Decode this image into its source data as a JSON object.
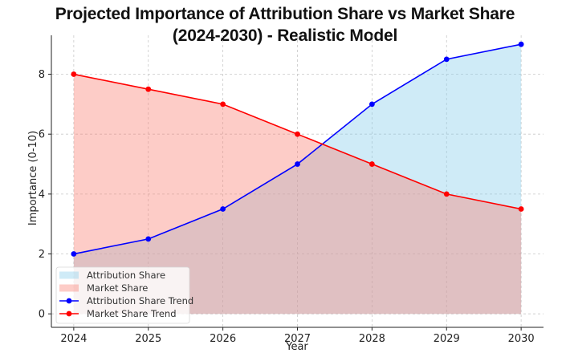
{
  "chart_data": {
    "type": "area",
    "title": "Projected Importance of Attribution Share vs Market Share",
    "subtitle": "(2024-2030) - Realistic Model",
    "xlabel": "Year",
    "ylabel": "Importance (0-10)",
    "x": [
      2024,
      2025,
      2026,
      2027,
      2028,
      2029,
      2030
    ],
    "x_ticks": [
      "2024",
      "2025",
      "2026",
      "2027",
      "2028",
      "2029",
      "2030"
    ],
    "y_ticks": [
      "0",
      "2",
      "4",
      "6",
      "8"
    ],
    "y_tick_values": [
      0,
      2,
      4,
      6,
      8
    ],
    "ylim": [
      -0.45,
      9.3
    ],
    "xlim": [
      2023.7,
      2030.3
    ],
    "grid": true,
    "legend_position": "bottom-left",
    "series": [
      {
        "name": "Attribution Share",
        "kind": "area",
        "values": [
          2,
          2.5,
          3.5,
          5,
          7,
          8.5,
          9
        ],
        "color": "#87CEEB",
        "opacity": 0.4
      },
      {
        "name": "Market Share",
        "kind": "area",
        "values": [
          8,
          7.5,
          7,
          6,
          5,
          4,
          3.5
        ],
        "color": "#FA8072",
        "opacity": 0.4
      },
      {
        "name": "Attribution Share Trend",
        "kind": "line",
        "values": [
          2,
          2.5,
          3.5,
          5,
          7,
          8.5,
          9
        ],
        "color": "#0000FF",
        "marker": "o"
      },
      {
        "name": "Market Share Trend",
        "kind": "line",
        "values": [
          8,
          7.5,
          7,
          6,
          5,
          4,
          3.5
        ],
        "color": "#FF0000",
        "marker": "o"
      }
    ]
  }
}
